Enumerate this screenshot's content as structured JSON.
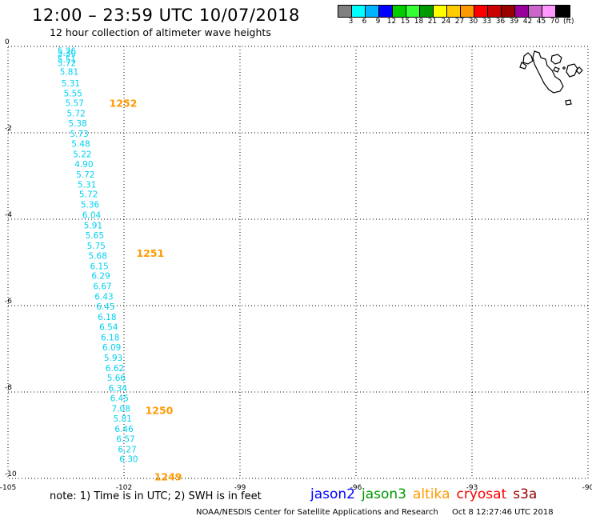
{
  "header": {
    "title": "12:00 – 23:59 UTC 10/07/2018",
    "subtitle": "12 hour collection of altimeter wave heights"
  },
  "colorscale": {
    "colors": [
      "#808080",
      "#00ffff",
      "#00b4ff",
      "#0000ff",
      "#00cc00",
      "#33ff33",
      "#009900",
      "#ffff00",
      "#ffcc00",
      "#ff9900",
      "#ff0000",
      "#cc0000",
      "#990000",
      "#990099",
      "#cc66cc",
      "#ff99ff",
      "#000000"
    ],
    "ticks": [
      "3",
      "6",
      "9",
      "12",
      "15",
      "18",
      "21",
      "24",
      "27",
      "30",
      "33",
      "36",
      "39",
      "42",
      "45",
      "70"
    ],
    "unit": "(ft)"
  },
  "map": {
    "lon_min": -105,
    "lon_max": -90,
    "lat_min": -10,
    "lat_max": 0,
    "lon_ticks": [
      {
        "value": -105,
        "label": "-105"
      },
      {
        "value": -102,
        "label": "-102"
      },
      {
        "value": -99,
        "label": "-99"
      },
      {
        "value": -96,
        "label": "-96"
      },
      {
        "value": -93,
        "label": "-93"
      },
      {
        "value": -90,
        "label": "-90"
      }
    ],
    "lat_ticks": [
      {
        "value": 0,
        "label": "0"
      },
      {
        "value": -2,
        "label": "-2"
      },
      {
        "value": -4,
        "label": "-4"
      },
      {
        "value": -6,
        "label": "-6"
      },
      {
        "value": -8,
        "label": "-8"
      },
      {
        "value": -10,
        "label": "-10"
      }
    ],
    "swh_color": "#00d0f0",
    "time_color": "#ff9900",
    "track": [
      {
        "lon": -103.72,
        "lat": -0.1,
        "swh": "5.26"
      },
      {
        "lon": -103.72,
        "lat": -0.15,
        "swh": "5.30"
      },
      {
        "lon": -103.72,
        "lat": -0.3,
        "swh": "5.51"
      },
      {
        "lon": -103.72,
        "lat": -0.38,
        "swh": "5.72"
      },
      {
        "lon": -103.66,
        "lat": -0.58,
        "swh": "5.81"
      },
      {
        "lon": -103.62,
        "lat": -0.85,
        "swh": "5.31"
      },
      {
        "lon": -103.56,
        "lat": -1.08,
        "swh": "5.55"
      },
      {
        "lon": -103.52,
        "lat": -1.31,
        "swh": "5.57"
      },
      {
        "lon": -103.48,
        "lat": -1.55,
        "swh": "5.72"
      },
      {
        "lon": -103.44,
        "lat": -1.78,
        "swh": "5.38"
      },
      {
        "lon": -103.4,
        "lat": -2.02,
        "swh": "5.73"
      },
      {
        "lon": -103.36,
        "lat": -2.25,
        "swh": "5.48"
      },
      {
        "lon": -103.32,
        "lat": -2.49,
        "swh": "5.22"
      },
      {
        "lon": -103.28,
        "lat": -2.72,
        "swh": "4.90"
      },
      {
        "lon": -103.24,
        "lat": -2.96,
        "swh": "5.72"
      },
      {
        "lon": -103.2,
        "lat": -3.19,
        "swh": "5.31"
      },
      {
        "lon": -103.16,
        "lat": -3.42,
        "swh": "5.72"
      },
      {
        "lon": -103.12,
        "lat": -3.66,
        "swh": "5.36"
      },
      {
        "lon": -103.08,
        "lat": -3.9,
        "swh": "6.04"
      },
      {
        "lon": -103.04,
        "lat": -4.14,
        "swh": "5.91"
      },
      {
        "lon": -103.0,
        "lat": -4.37,
        "swh": "5.65"
      },
      {
        "lon": -102.96,
        "lat": -4.61,
        "swh": "5.75"
      },
      {
        "lon": -102.92,
        "lat": -4.84,
        "swh": "5.68"
      },
      {
        "lon": -102.88,
        "lat": -5.08,
        "swh": "6.15"
      },
      {
        "lon": -102.84,
        "lat": -5.31,
        "swh": "6.29"
      },
      {
        "lon": -102.8,
        "lat": -5.55,
        "swh": "6.67"
      },
      {
        "lon": -102.76,
        "lat": -5.79,
        "swh": "6.43"
      },
      {
        "lon": -102.72,
        "lat": -6.02,
        "swh": "6.45"
      },
      {
        "lon": -102.68,
        "lat": -6.26,
        "swh": "6.18"
      },
      {
        "lon": -102.64,
        "lat": -6.49,
        "swh": "6.54"
      },
      {
        "lon": -102.6,
        "lat": -6.73,
        "swh": "6.18"
      },
      {
        "lon": -102.56,
        "lat": -6.96,
        "swh": "6.09"
      },
      {
        "lon": -102.52,
        "lat": -7.2,
        "swh": "5.93"
      },
      {
        "lon": -102.48,
        "lat": -7.44,
        "swh": "6.62"
      },
      {
        "lon": -102.44,
        "lat": -7.67,
        "swh": "5.66"
      },
      {
        "lon": -102.4,
        "lat": -7.91,
        "swh": "6.34"
      },
      {
        "lon": -102.36,
        "lat": -8.14,
        "swh": "6.45"
      },
      {
        "lon": -102.32,
        "lat": -8.38,
        "swh": "7.08"
      },
      {
        "lon": -102.28,
        "lat": -8.61,
        "swh": "5.81"
      },
      {
        "lon": -102.24,
        "lat": -8.85,
        "swh": "6.46"
      },
      {
        "lon": -102.2,
        "lat": -9.08,
        "swh": "6.57"
      },
      {
        "lon": -102.16,
        "lat": -9.32,
        "swh": "6.27"
      },
      {
        "lon": -102.12,
        "lat": -9.55,
        "swh": "6.30"
      }
    ],
    "times": [
      {
        "lon": -102.38,
        "lat": -1.31,
        "label": "1252"
      },
      {
        "lon": -101.68,
        "lat": -4.78,
        "label": "1251"
      },
      {
        "lon": -101.45,
        "lat": -8.42,
        "label": "1250"
      },
      {
        "lon": -101.22,
        "lat": -9.95,
        "label": "1249"
      }
    ]
  },
  "footer": {
    "note": "note: 1) Time is in UTC; 2) SWH is in feet",
    "satellites": [
      {
        "name": "jason2",
        "color": "#0000ff"
      },
      {
        "name": "jason3",
        "color": "#009900"
      },
      {
        "name": "altika",
        "color": "#ff9900"
      },
      {
        "name": "cryosat",
        "color": "#ff0000"
      },
      {
        "name": "s3a",
        "color": "#990000"
      }
    ],
    "credit": "NOAA/NESDIS Center for Satellite Applications and Research",
    "timestamp": "Oct  8 12:27:46 UTC 2018"
  }
}
